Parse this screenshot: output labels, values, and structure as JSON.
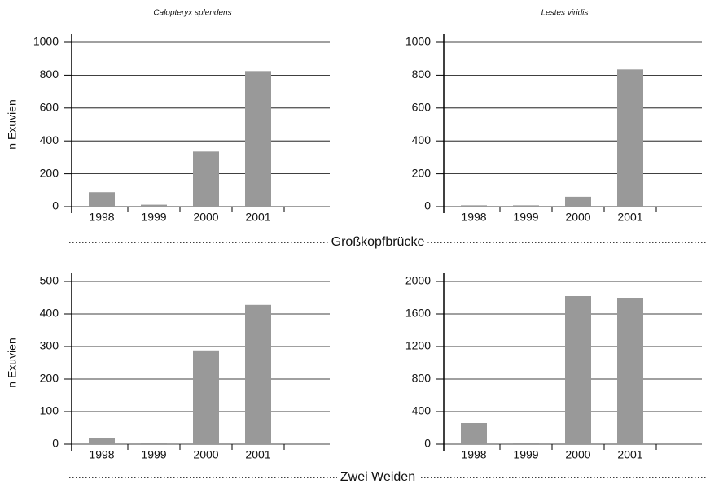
{
  "chart_data": [
    {
      "type": "bar",
      "title": "Calopteryx splendens",
      "ylabel": "n Exuvien",
      "categories": [
        "1998",
        "1999",
        "2000",
        "2001"
      ],
      "values": [
        88,
        12,
        335,
        825
      ],
      "color": "#999999",
      "ylim": [
        0,
        1000
      ],
      "yticks": [
        0,
        200,
        400,
        600,
        800,
        1000
      ],
      "grid": true
    },
    {
      "type": "bar",
      "title": "Lestes viridis",
      "categories": [
        "1998",
        "1999",
        "2000",
        "2001"
      ],
      "values": [
        8,
        8,
        60,
        835
      ],
      "color": "#999999",
      "ylim": [
        0,
        1000
      ],
      "yticks": [
        0,
        200,
        400,
        600,
        800,
        1000
      ],
      "grid": true
    },
    {
      "type": "bar",
      "ylabel": "n Exuvien",
      "categories": [
        "1998",
        "1999",
        "2000",
        "2001"
      ],
      "values": [
        20,
        5,
        288,
        428
      ],
      "color": "#999999",
      "ylim": [
        0,
        500
      ],
      "yticks": [
        0,
        100,
        200,
        300,
        400,
        500
      ],
      "grid": true
    },
    {
      "type": "bar",
      "categories": [
        "1998",
        "1999",
        "2000",
        "2001"
      ],
      "values": [
        260,
        15,
        1820,
        1800
      ],
      "color": "#999999",
      "ylim": [
        0,
        2000
      ],
      "yticks": [
        0,
        400,
        800,
        1200,
        1600,
        2000
      ],
      "grid": true
    }
  ],
  "row_labels": [
    "Großkopfbrücke",
    "Zwei Weiden"
  ]
}
